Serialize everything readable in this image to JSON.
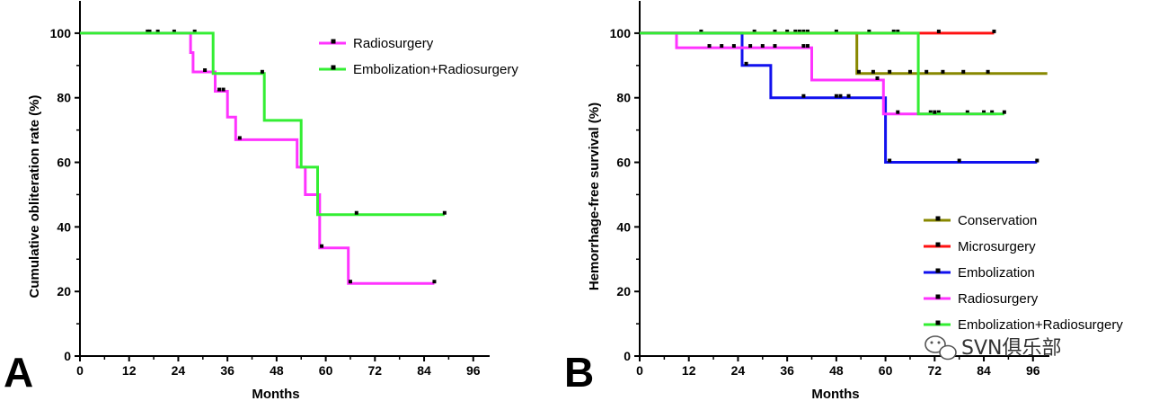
{
  "watermark": "SVN俱乐部",
  "watermark_icon": "wechat-icon",
  "chart_data": [
    {
      "type": "line",
      "panel_label": "A",
      "xlabel": "Months",
      "ylabel": "Cumulative obliteration rate (%)",
      "xlim": [
        0,
        100
      ],
      "ylim": [
        0,
        110
      ],
      "xticks": [
        0,
        12,
        24,
        36,
        48,
        60,
        72,
        84,
        96
      ],
      "yticks": [
        0,
        20,
        40,
        60,
        80,
        100
      ],
      "grid": false,
      "legend_position": "top-right",
      "series": [
        {
          "name": "Radiosurgery",
          "color": "#ff33ff",
          "steps": [
            [
              0,
              100
            ],
            [
              27,
              94
            ],
            [
              27.6,
              88
            ],
            [
              30.5,
              88
            ],
            [
              33,
              82
            ],
            [
              36,
              74
            ],
            [
              38,
              67
            ],
            [
              52,
              67
            ],
            [
              53,
              58.5
            ],
            [
              55,
              58.5
            ],
            [
              55,
              50
            ],
            [
              57,
              50
            ],
            [
              58.5,
              33.5
            ],
            [
              65,
              33.5
            ],
            [
              65.5,
              22.5
            ],
            [
              86.5,
              22.5
            ]
          ],
          "censored": [
            [
              16.5,
              100
            ],
            [
              17,
              100
            ],
            [
              19,
              100
            ],
            [
              23,
              100
            ],
            [
              28,
              100
            ],
            [
              30.5,
              88
            ],
            [
              34,
              82
            ],
            [
              35,
              82
            ],
            [
              39,
              67
            ],
            [
              59,
              33.5
            ],
            [
              66,
              22.5
            ],
            [
              86.5,
              22.5
            ]
          ]
        },
        {
          "name": "Embolization+Radiosurgery",
          "color": "#33ee33",
          "steps": [
            [
              0,
              100
            ],
            [
              32,
              100
            ],
            [
              32.5,
              87.5
            ],
            [
              44.5,
              87.5
            ],
            [
              45,
              73
            ],
            [
              53.5,
              73
            ],
            [
              54,
              58.5
            ],
            [
              57.5,
              58.5
            ],
            [
              58,
              43.8
            ],
            [
              89,
              43.8
            ]
          ],
          "censored": [
            [
              44.5,
              87.5
            ],
            [
              67.5,
              43.8
            ],
            [
              89,
              43.8
            ]
          ]
        }
      ]
    },
    {
      "type": "line",
      "panel_label": "B",
      "xlabel": "Months",
      "ylabel": "Hemorrhage-free survival (%)",
      "xlim": [
        0,
        100
      ],
      "ylim": [
        0,
        110
      ],
      "xticks": [
        0,
        12,
        24,
        36,
        48,
        60,
        72,
        84,
        96
      ],
      "yticks": [
        0,
        20,
        40,
        60,
        80,
        100
      ],
      "grid": false,
      "legend_position": "bottom-right",
      "series": [
        {
          "name": "Conservation",
          "color": "#888800",
          "steps": [
            [
              0,
              100
            ],
            [
              52.5,
              100
            ],
            [
              53,
              87.5
            ],
            [
              99.5,
              87.5
            ]
          ],
          "censored": [
            [
              15,
              100
            ],
            [
              28,
              100
            ],
            [
              33,
              100
            ],
            [
              36,
              100
            ],
            [
              38,
              100
            ],
            [
              39,
              100
            ],
            [
              40,
              100
            ],
            [
              41,
              100
            ],
            [
              53.5,
              87.5
            ],
            [
              57,
              87.5
            ],
            [
              61,
              87.5
            ],
            [
              66,
              87.5
            ],
            [
              70,
              87.5
            ],
            [
              74,
              87.5
            ],
            [
              79,
              87.5
            ],
            [
              85,
              87.5
            ]
          ]
        },
        {
          "name": "Microsurgery",
          "color": "#ff1111",
          "steps": [
            [
              0,
              100
            ],
            [
              86.5,
              100
            ]
          ],
          "censored": [
            [
              48,
              100
            ],
            [
              56,
              100
            ],
            [
              62,
              100
            ],
            [
              63,
              100
            ],
            [
              73,
              100
            ],
            [
              86.5,
              100
            ]
          ]
        },
        {
          "name": "Embolization",
          "color": "#1111ee",
          "steps": [
            [
              0,
              100
            ],
            [
              25,
              100
            ],
            [
              25,
              90
            ],
            [
              32,
              90
            ],
            [
              32,
              80
            ],
            [
              59.5,
              80
            ],
            [
              60,
              60
            ],
            [
              97,
              60
            ]
          ],
          "censored": [
            [
              26,
              90
            ],
            [
              40,
              80
            ],
            [
              48,
              80
            ],
            [
              49,
              80
            ],
            [
              51,
              80
            ],
            [
              61,
              60
            ],
            [
              78,
              60
            ],
            [
              97,
              60
            ]
          ]
        },
        {
          "name": "Radiosurgery",
          "color": "#ff33ff",
          "steps": [
            [
              0,
              100
            ],
            [
              9,
              100
            ],
            [
              9,
              95.5
            ],
            [
              41.5,
              95.5
            ],
            [
              42,
              85.5
            ],
            [
              59,
              85.5
            ],
            [
              59.5,
              75
            ],
            [
              87,
              75
            ]
          ],
          "censored": [
            [
              17,
              95.5
            ],
            [
              20,
              95.5
            ],
            [
              23,
              95.5
            ],
            [
              27,
              95.5
            ],
            [
              30,
              95.5
            ],
            [
              33,
              95.5
            ],
            [
              40,
              95.5
            ],
            [
              41,
              95.5
            ],
            [
              58,
              85.5
            ],
            [
              63,
              75
            ],
            [
              71,
              75
            ],
            [
              73,
              75
            ],
            [
              80,
              75
            ],
            [
              84,
              75
            ],
            [
              86,
              75
            ]
          ]
        },
        {
          "name": "Embolization+Radiosurgery",
          "color": "#33ee33",
          "steps": [
            [
              0,
              100
            ],
            [
              67.5,
              100
            ],
            [
              68,
              75
            ],
            [
              89,
              75
            ]
          ],
          "censored": [
            [
              72,
              75
            ],
            [
              89,
              75
            ]
          ]
        }
      ]
    }
  ]
}
